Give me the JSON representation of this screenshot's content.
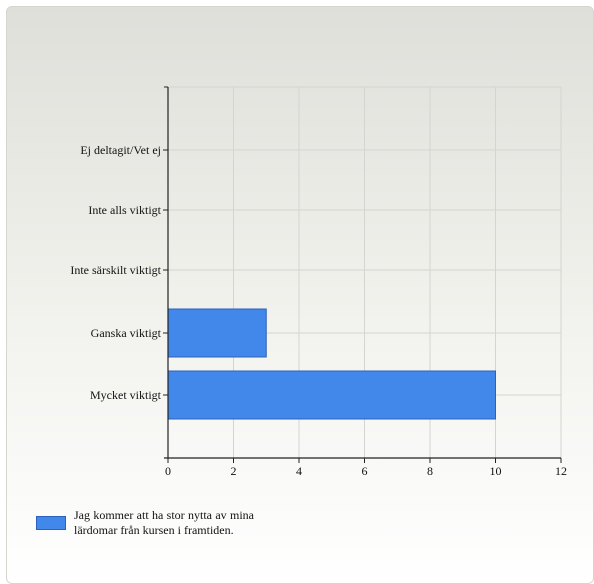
{
  "chart_data": {
    "type": "bar",
    "orientation": "horizontal",
    "categories": [
      "Ej deltagit/Vet ej",
      "Inte alls viktigt",
      "Inte särskilt viktigt",
      "Ganska viktigt",
      "Mycket viktigt"
    ],
    "series": [
      {
        "name": "Jag kommer att ha stor nytta av mina lärdomar från kursen i framtiden.",
        "values": [
          0,
          0,
          0,
          3,
          10
        ],
        "color": "#4287ea"
      }
    ],
    "xlim": [
      0,
      12
    ],
    "x_ticks": [
      0,
      2,
      4,
      6,
      8,
      10,
      12
    ],
    "grid": true,
    "legend_position": "bottom-left",
    "title": "",
    "xlabel": "",
    "ylabel": ""
  }
}
